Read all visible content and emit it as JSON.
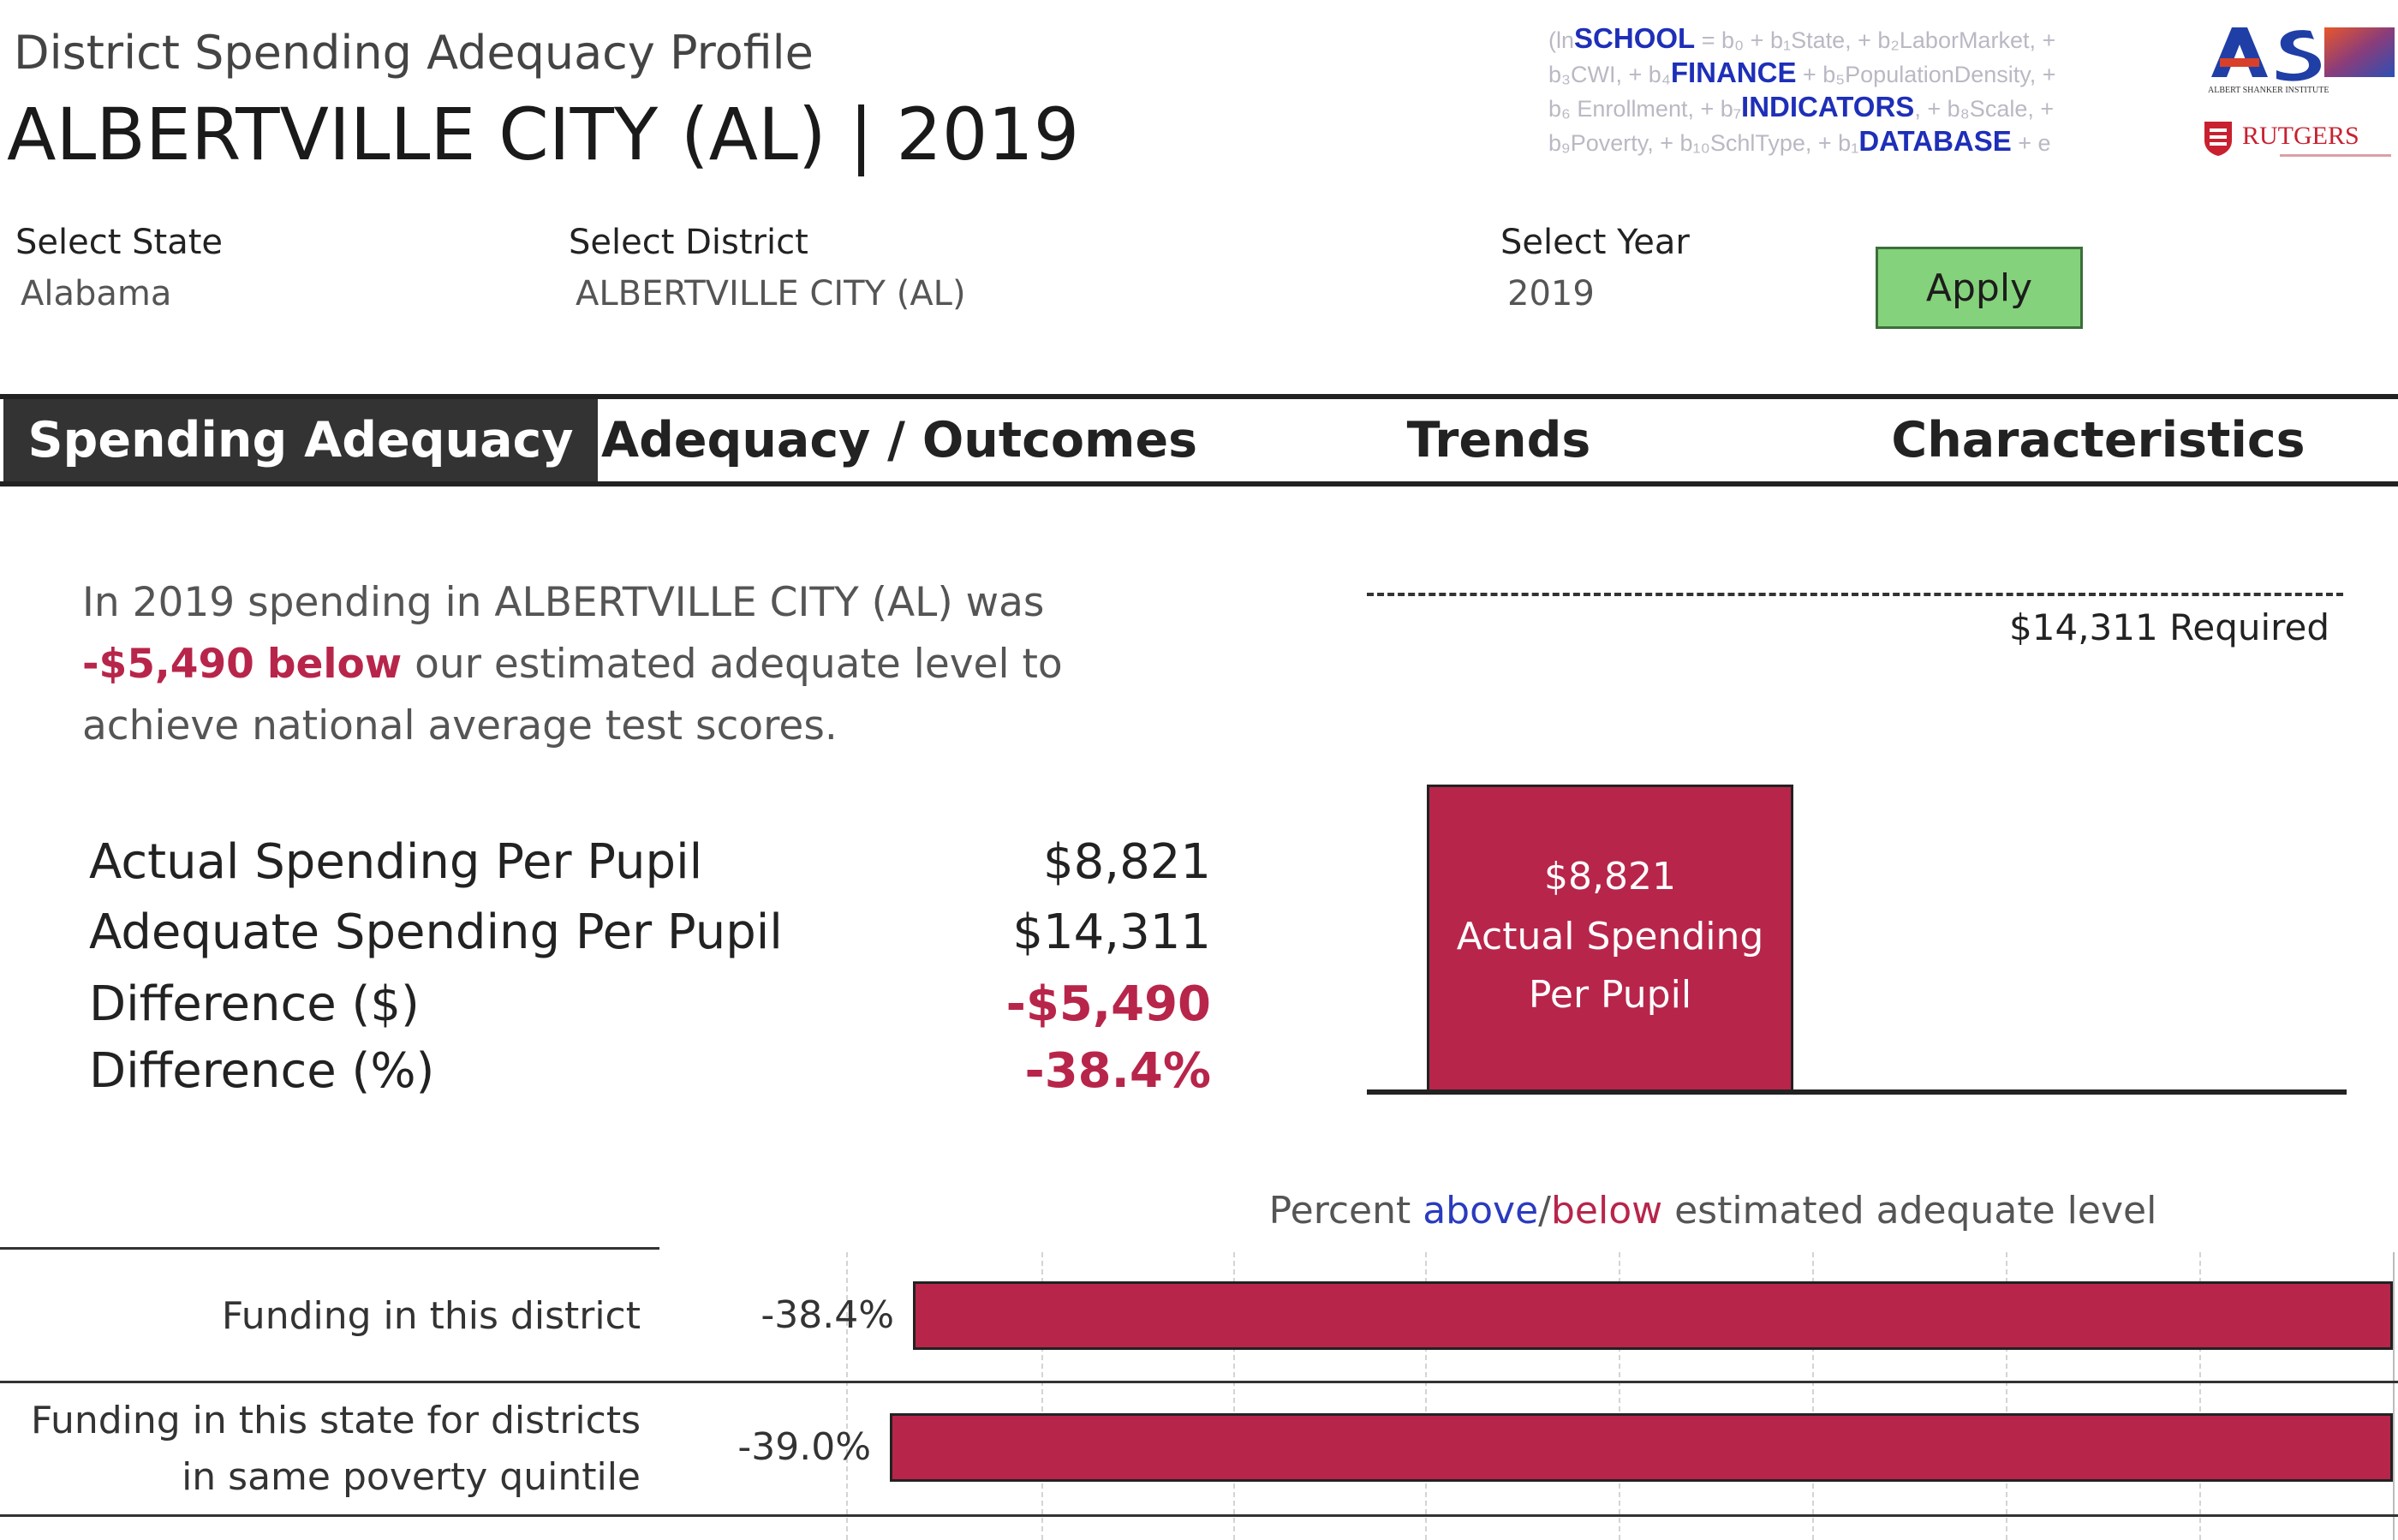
{
  "header": {
    "subtitle": "District Spending Adequacy Profile",
    "title": "ALBERTVILLE CITY (AL) | 2019"
  },
  "logos": {
    "sfid": {
      "lines": [
        {
          "pre": "(ln",
          "word": "SCHOOL",
          "post": " = b₀ + b₁State, + b₂LaborMarket, +"
        },
        {
          "pre": "b₃CWI, + b₄",
          "word": "FINANCE",
          "post": " + b₅PopulationDensity, +"
        },
        {
          "pre": "b₆ Enrollment, + b₇",
          "word": "INDICATORS",
          "post": ", + b₈Scale, +"
        },
        {
          "pre": "b₉Poverty, + b₁₀SchlType, + b₁",
          "word": "DATABASE",
          "post": " + e"
        }
      ]
    },
    "asi": {
      "name": "ALBERT SHANKER INSTITUTE"
    },
    "rutgers": {
      "name": "RUTGERS"
    }
  },
  "selectors": {
    "state": {
      "label": "Select State",
      "value": "Alabama"
    },
    "district": {
      "label": "Select District",
      "value": "ALBERTVILLE CITY (AL)"
    },
    "year": {
      "label": "Select Year",
      "value": "2019"
    },
    "apply_label": "Apply"
  },
  "tabs": [
    {
      "label": "Spending Adequacy",
      "active": true
    },
    {
      "label": "Adequacy / Outcomes",
      "active": false
    },
    {
      "label": "Trends",
      "active": false
    },
    {
      "label": "Characteristics",
      "active": false
    }
  ],
  "narrative": {
    "part1": "In 2019 spending in ALBERTVILLE CITY (AL) was ",
    "amount": "-$5,490",
    "direction": "below",
    "part2": " our estimated adequate level to achieve national average test scores."
  },
  "metrics": [
    {
      "label": "Actual Spending Per Pupil",
      "value": "$8,821",
      "negative": false
    },
    {
      "label": "Adequate Spending Per Pupil",
      "value": "$14,311",
      "negative": false
    },
    {
      "label": "Difference ($)",
      "value": "-$5,490",
      "negative": true
    },
    {
      "label": "Difference (%)",
      "value": "-38.4%",
      "negative": true
    }
  ],
  "chart_data": [
    {
      "type": "bar",
      "categories": [
        "Actual Spending Per Pupil"
      ],
      "values": [
        8821
      ],
      "data_labels": [
        "$8,821"
      ],
      "reference_line": {
        "value": 14311,
        "label": "$14,311 Required"
      },
      "colors": {
        "bar": "#b8254a"
      }
    },
    {
      "type": "bar",
      "orientation": "horizontal",
      "title_parts": {
        "pre": "Percent ",
        "above": "above",
        "sep": "/",
        "below": "below",
        "post": " estimated adequate level"
      },
      "categories": [
        "Funding in this district",
        "Funding in this state for districts in same poverty quintile"
      ],
      "values": [
        -38.4,
        -39.0
      ],
      "data_labels": [
        "-38.4%",
        "-39.0%"
      ],
      "colors": {
        "below": "#b8254a",
        "above": "#2a3bbf"
      }
    }
  ]
}
